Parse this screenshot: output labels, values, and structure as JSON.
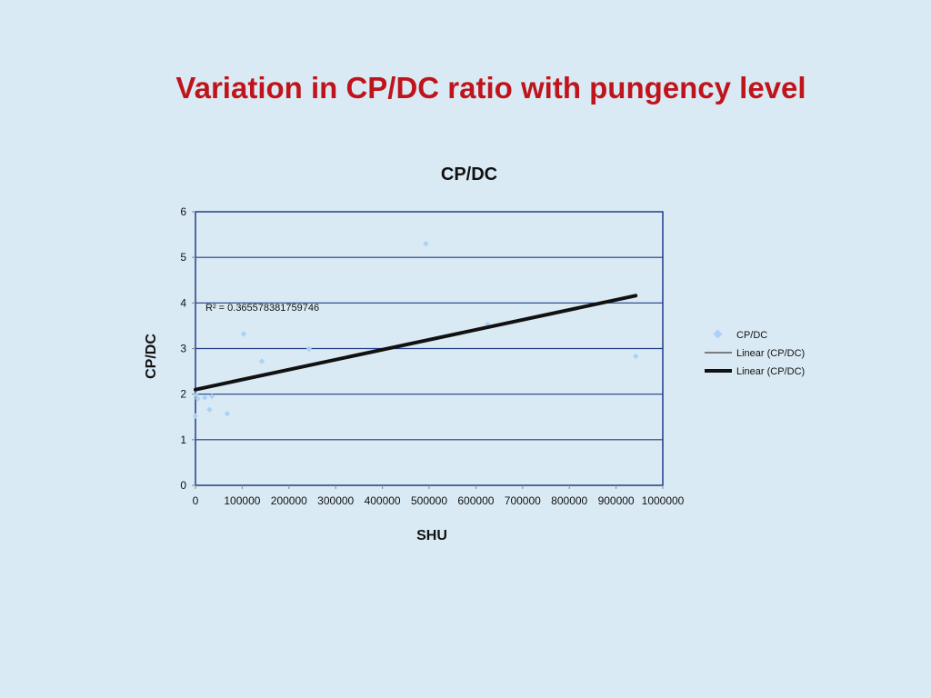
{
  "slide": {
    "title": "Variation in CP/DC ratio with pungency level"
  },
  "colors": {
    "title": "#c0141c",
    "background": "#daeaf4",
    "marker": "#a9d2f5",
    "gridline": "#1f3c88",
    "trendline": "#111111"
  },
  "chart_data": {
    "type": "scatter",
    "title": "CP/DC",
    "xlabel": "SHU",
    "ylabel": "CP/DC",
    "xlim": [
      0,
      1000000
    ],
    "ylim": [
      0,
      6
    ],
    "x_ticks": [
      "0",
      "100000",
      "200000",
      "300000",
      "400000",
      "500000",
      "600000",
      "700000",
      "800000",
      "900000",
      "1000000"
    ],
    "y_ticks": [
      "0",
      "1",
      "2",
      "3",
      "4",
      "5",
      "6"
    ],
    "grid": true,
    "legend_position": "right",
    "series": [
      {
        "name": "CP/DC",
        "marker": "diamond",
        "points": [
          {
            "x": 0,
            "y": 1.52
          },
          {
            "x": 2000,
            "y": 1.98
          },
          {
            "x": 5000,
            "y": 1.9
          },
          {
            "x": 20000,
            "y": 1.92
          },
          {
            "x": 30000,
            "y": 1.66
          },
          {
            "x": 35000,
            "y": 1.95
          },
          {
            "x": 68000,
            "y": 1.57
          },
          {
            "x": 103000,
            "y": 3.32
          },
          {
            "x": 142000,
            "y": 2.72
          },
          {
            "x": 243000,
            "y": 2.99
          },
          {
            "x": 493000,
            "y": 5.3
          },
          {
            "x": 625000,
            "y": 3.53
          },
          {
            "x": 942000,
            "y": 2.83
          }
        ]
      }
    ],
    "trendline": {
      "type": "linear",
      "x_range": [
        0,
        942000
      ],
      "y_start": 2.1,
      "y_end": 4.16,
      "r_squared_label": "R² = 0.365578381759746"
    },
    "legend": [
      "CP/DC",
      "Linear (CP/DC)",
      "Linear (CP/DC)"
    ]
  }
}
